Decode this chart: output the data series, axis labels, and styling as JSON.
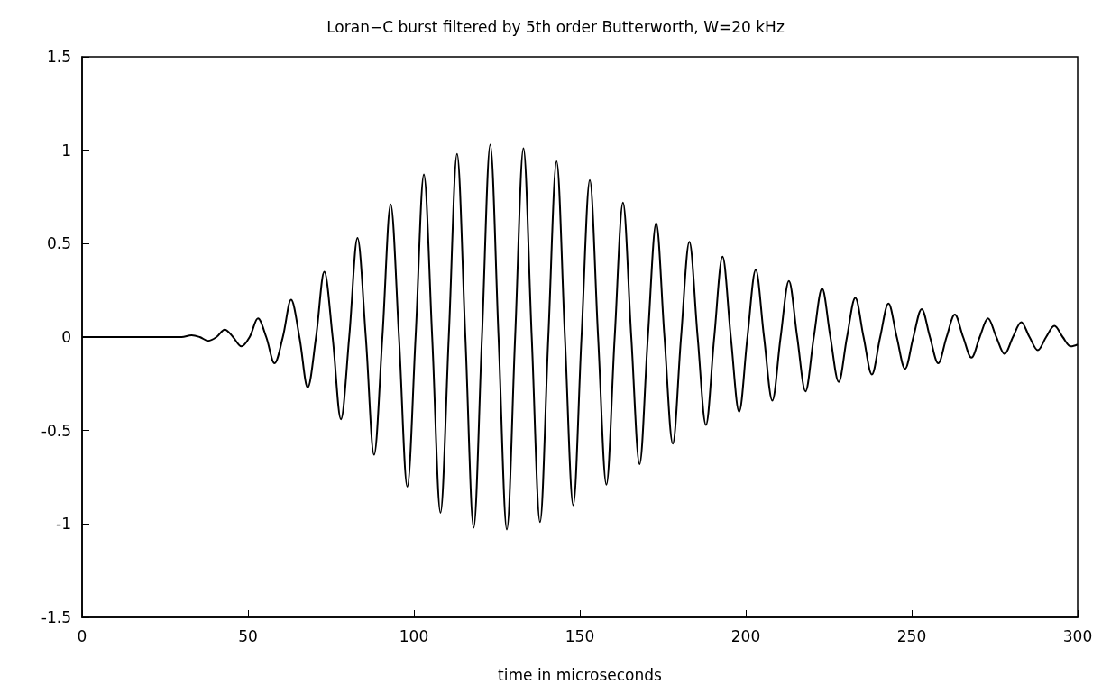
{
  "chart_data": {
    "type": "line",
    "title": "Loran−C burst filtered by 5th order Butterworth, W=20 kHz",
    "xlabel": "time in microseconds",
    "xlim": [
      0,
      300
    ],
    "xticks": [
      0,
      50,
      100,
      150,
      200,
      250,
      300
    ],
    "ylim": [
      -1.5,
      1.5
    ],
    "yticks": [
      -1.5,
      -1,
      -0.5,
      0,
      0.5,
      1,
      1.5
    ],
    "grid": false,
    "marker": "none",
    "line_style": "solid",
    "series": [
      {
        "color": "#000000",
        "x": [
          0,
          25,
          30,
          33,
          35.5,
          38,
          40.5,
          43,
          45.5,
          48,
          50.5,
          53,
          55.5,
          58,
          60.5,
          63,
          65.5,
          68,
          70.5,
          73,
          75.5,
          78,
          80.5,
          83,
          85.5,
          88,
          90.5,
          93,
          95.5,
          98,
          100.5,
          103,
          105.5,
          108,
          110.5,
          113,
          115.5,
          118,
          120.5,
          123,
          125.5,
          128,
          130.5,
          133,
          135.5,
          138,
          140.5,
          143,
          145.5,
          148,
          150.5,
          153,
          155.5,
          158,
          160.5,
          163,
          165.5,
          168,
          170.5,
          173,
          175.5,
          178,
          180.5,
          183,
          185.5,
          188,
          190.5,
          193,
          195.5,
          198,
          200.5,
          203,
          205.5,
          208,
          210.5,
          213,
          215.5,
          218,
          220.5,
          223,
          225.5,
          228,
          230.5,
          233,
          235.5,
          238,
          240.5,
          243,
          245.5,
          248,
          250.5,
          253,
          255.5,
          258,
          260.5,
          263,
          265.5,
          268,
          270.5,
          273,
          275.5,
          278,
          280.5,
          283,
          285.5,
          288,
          290.5,
          293,
          295.5,
          298,
          300
        ],
        "values": [
          0,
          0,
          0,
          0.01,
          0,
          -0.02,
          0,
          0.04,
          0,
          -0.05,
          0,
          0.1,
          0,
          -0.14,
          0,
          0.2,
          0,
          -0.27,
          0,
          0.35,
          0,
          -0.44,
          0,
          0.53,
          0,
          -0.63,
          0,
          0.71,
          0,
          -0.8,
          0,
          0.87,
          0,
          -0.94,
          0,
          0.98,
          0,
          -1.02,
          0,
          1.03,
          0,
          -1.03,
          0,
          1.01,
          0,
          -0.99,
          0,
          0.94,
          0,
          -0.9,
          0,
          0.84,
          0,
          -0.79,
          0,
          0.72,
          0,
          -0.68,
          0,
          0.61,
          0,
          -0.57,
          0,
          0.51,
          0,
          -0.47,
          0,
          0.43,
          0,
          -0.4,
          0,
          0.36,
          0,
          -0.34,
          0,
          0.3,
          0,
          -0.29,
          0,
          0.26,
          0,
          -0.24,
          0,
          0.21,
          0,
          -0.2,
          0,
          0.18,
          0,
          -0.17,
          0,
          0.15,
          0,
          -0.14,
          0,
          0.12,
          0,
          -0.11,
          0,
          0.1,
          0,
          -0.09,
          0,
          0.08,
          0,
          -0.07,
          0,
          0.06,
          0,
          -0.05,
          -0.04
        ]
      }
    ]
  }
}
